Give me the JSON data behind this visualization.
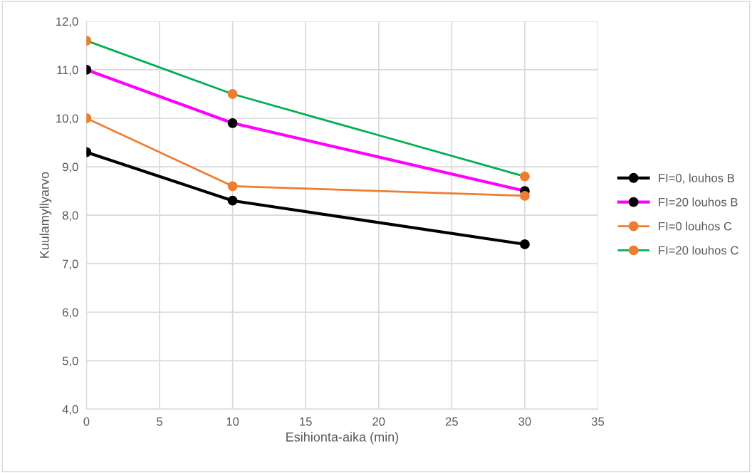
{
  "chart_data": {
    "type": "line",
    "xlabel": "Esihionta-aika (min)",
    "ylabel": "Kuulamyllyarvo",
    "x": [
      0,
      10,
      30
    ],
    "series": [
      {
        "name": "FI=0, louhos B",
        "color": "#000000",
        "colors": [
          "#000000",
          "#000000",
          "#000000"
        ],
        "values": [
          9.3,
          8.3,
          7.4
        ]
      },
      {
        "name": "FI=20 louhos B",
        "color": "#ff00ff",
        "colors": [
          "#000000",
          "#000000",
          "#000000"
        ],
        "values": [
          11.0,
          9.9,
          8.5
        ]
      },
      {
        "name": "FI=0 louhos C",
        "color": "#ed7d31",
        "colors": [
          "#ed7d31",
          "#ed7d31",
          "#ed7d31"
        ],
        "values": [
          10.0,
          8.6,
          8.4
        ]
      },
      {
        "name": "FI=20 louhos C",
        "color": "#00b050",
        "colors": [
          "#ed7d31",
          "#ed7d31",
          "#ed7d31"
        ],
        "values": [
          11.6,
          10.5,
          8.8
        ]
      }
    ],
    "xlim": [
      0,
      35
    ],
    "xticks": [
      0,
      5,
      10,
      15,
      20,
      25,
      30,
      35
    ],
    "ylim": [
      4,
      12
    ],
    "yticks": [
      {
        "value": 4,
        "label": "4,0"
      },
      {
        "value": 5,
        "label": "5,0"
      },
      {
        "value": 6,
        "label": "6,0"
      },
      {
        "value": 7,
        "label": "7,0"
      },
      {
        "value": 8,
        "label": "8,0"
      },
      {
        "value": 9,
        "label": "9,0"
      },
      {
        "value": 10,
        "label": "10,0"
      },
      {
        "value": 11,
        "label": "11,0"
      },
      {
        "value": 12,
        "label": "12,0"
      }
    ],
    "grid": true,
    "legend": "right",
    "marker": "circle",
    "line_style": "solid"
  }
}
